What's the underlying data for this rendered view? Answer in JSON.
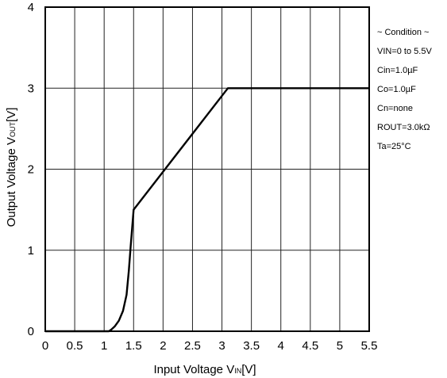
{
  "chart_data": {
    "type": "line",
    "xlabel_main": "Input Voltage V",
    "xlabel_sub": "IN",
    "xlabel_unit": "[V]",
    "ylabel_main": "Output Voltage V",
    "ylabel_sub": "OUT",
    "ylabel_unit": "[V]",
    "xlim": [
      0,
      5.5
    ],
    "ylim": [
      0,
      4
    ],
    "x_ticks": [
      "0",
      "0.5",
      "1",
      "1.5",
      "2",
      "2.5",
      "3",
      "3.5",
      "4",
      "4.5",
      "5",
      "5.5"
    ],
    "y_ticks": [
      "0",
      "1",
      "2",
      "3",
      "4"
    ],
    "grid": true,
    "series": [
      {
        "x": [
          0,
          1.08,
          1.12,
          1.18,
          1.25,
          1.32,
          1.38,
          1.42,
          1.45,
          1.5,
          3.1,
          5.5
        ],
        "y": [
          0,
          0,
          0.02,
          0.06,
          0.13,
          0.25,
          0.45,
          0.75,
          1.05,
          1.5,
          3.0,
          3.0
        ]
      }
    ],
    "conditions": [
      "~ Condition ~",
      "VIN=0 to 5.5V",
      "Cin=1.0µF",
      "Co=1.0µF",
      "Cn=none",
      "ROUT=3.0kΩ",
      "Ta=25°C"
    ]
  }
}
